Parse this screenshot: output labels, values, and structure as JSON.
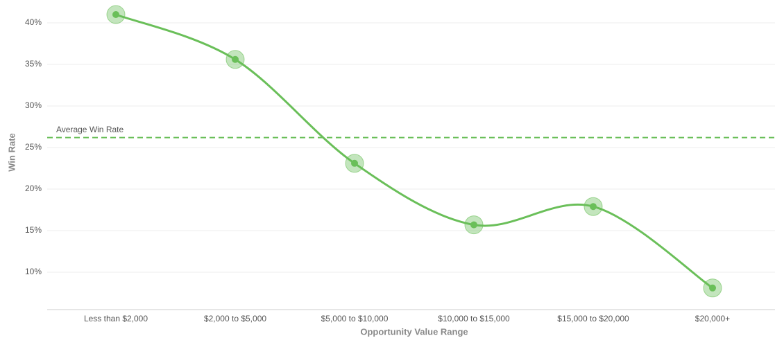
{
  "chart_data": {
    "type": "line",
    "x_label": "Opportunity Value Range",
    "y_label": "Win Rate",
    "categories": [
      "Less than $2,000",
      "$2,000 to $5,000",
      "$5,000 to $10,000",
      "$10,000 to $15,000",
      "$15,000 to $20,000",
      "$20,000+"
    ],
    "series": [
      {
        "name": "Win Rate",
        "color": "#6abf59",
        "values": [
          41.0,
          35.6,
          23.1,
          15.7,
          17.9,
          8.1
        ]
      }
    ],
    "average": {
      "label": "Average Win Rate",
      "value": 26.2
    },
    "ylim": [
      5.5,
      42
    ],
    "yticks": [
      {
        "value": 10,
        "label": "10%"
      },
      {
        "value": 15,
        "label": "15%"
      },
      {
        "value": 20,
        "label": "20%"
      },
      {
        "value": 25,
        "label": "25%"
      },
      {
        "value": 30,
        "label": "30%"
      },
      {
        "value": 35,
        "label": "35%"
      },
      {
        "value": 40,
        "label": "40%"
      }
    ],
    "grid": true
  }
}
